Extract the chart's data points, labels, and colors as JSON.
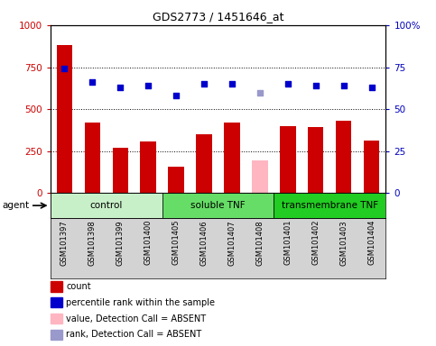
{
  "title": "GDS2773 / 1451646_at",
  "samples": [
    "GSM101397",
    "GSM101398",
    "GSM101399",
    "GSM101400",
    "GSM101405",
    "GSM101406",
    "GSM101407",
    "GSM101408",
    "GSM101401",
    "GSM101402",
    "GSM101403",
    "GSM101404"
  ],
  "counts": [
    880,
    420,
    270,
    305,
    155,
    350,
    420,
    null,
    400,
    395,
    430,
    315
  ],
  "counts_absent": [
    null,
    null,
    null,
    null,
    null,
    null,
    null,
    195,
    null,
    null,
    null,
    null
  ],
  "percentile_ranks": [
    74,
    66,
    63,
    64,
    58,
    65,
    65,
    null,
    65,
    64,
    64,
    63
  ],
  "ranks_absent": [
    null,
    null,
    null,
    null,
    null,
    null,
    null,
    60,
    null,
    null,
    null,
    null
  ],
  "groups": [
    {
      "label": "control",
      "start": 0,
      "end": 4,
      "color": "#c8f0c8"
    },
    {
      "label": "soluble TNF",
      "start": 4,
      "end": 8,
      "color": "#66dd66"
    },
    {
      "label": "transmembrane TNF",
      "start": 8,
      "end": 12,
      "color": "#22cc22"
    }
  ],
  "bar_color": "#cc0000",
  "bar_absent_color": "#ffb6c1",
  "dot_color": "#0000cc",
  "dot_absent_color": "#9999cc",
  "tick_color_left": "#cc0000",
  "tick_color_right": "#0000bb",
  "xlabel_area_color": "#d3d3d3",
  "legend_items": [
    {
      "color": "#cc0000",
      "label": "count"
    },
    {
      "color": "#0000cc",
      "label": "percentile rank within the sample"
    },
    {
      "color": "#ffb6c1",
      "label": "value, Detection Call = ABSENT"
    },
    {
      "color": "#9999cc",
      "label": "rank, Detection Call = ABSENT"
    }
  ]
}
